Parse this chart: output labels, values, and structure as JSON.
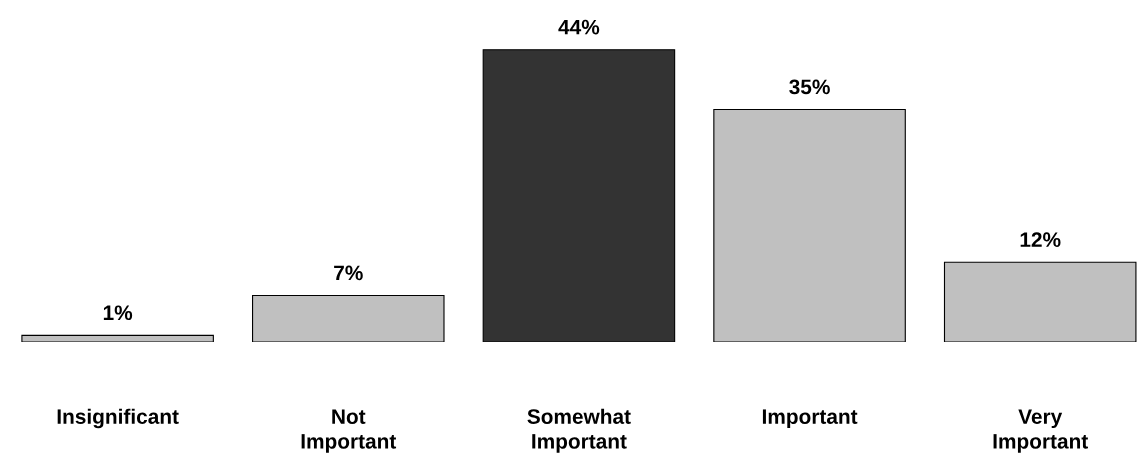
{
  "chart_data": {
    "type": "bar",
    "categories": [
      "Insignificant",
      "Not\nImportant",
      "Somewhat\nImportant",
      "Important",
      "Very\nImportant"
    ],
    "values": [
      1,
      7,
      44,
      35,
      12
    ],
    "colors": [
      "#c0c0c0",
      "#c0c0c0",
      "#333333",
      "#c0c0c0",
      "#c0c0c0"
    ],
    "value_labels": [
      "1%",
      "7%",
      "44%",
      "35%",
      "12%"
    ],
    "grid": false
  }
}
